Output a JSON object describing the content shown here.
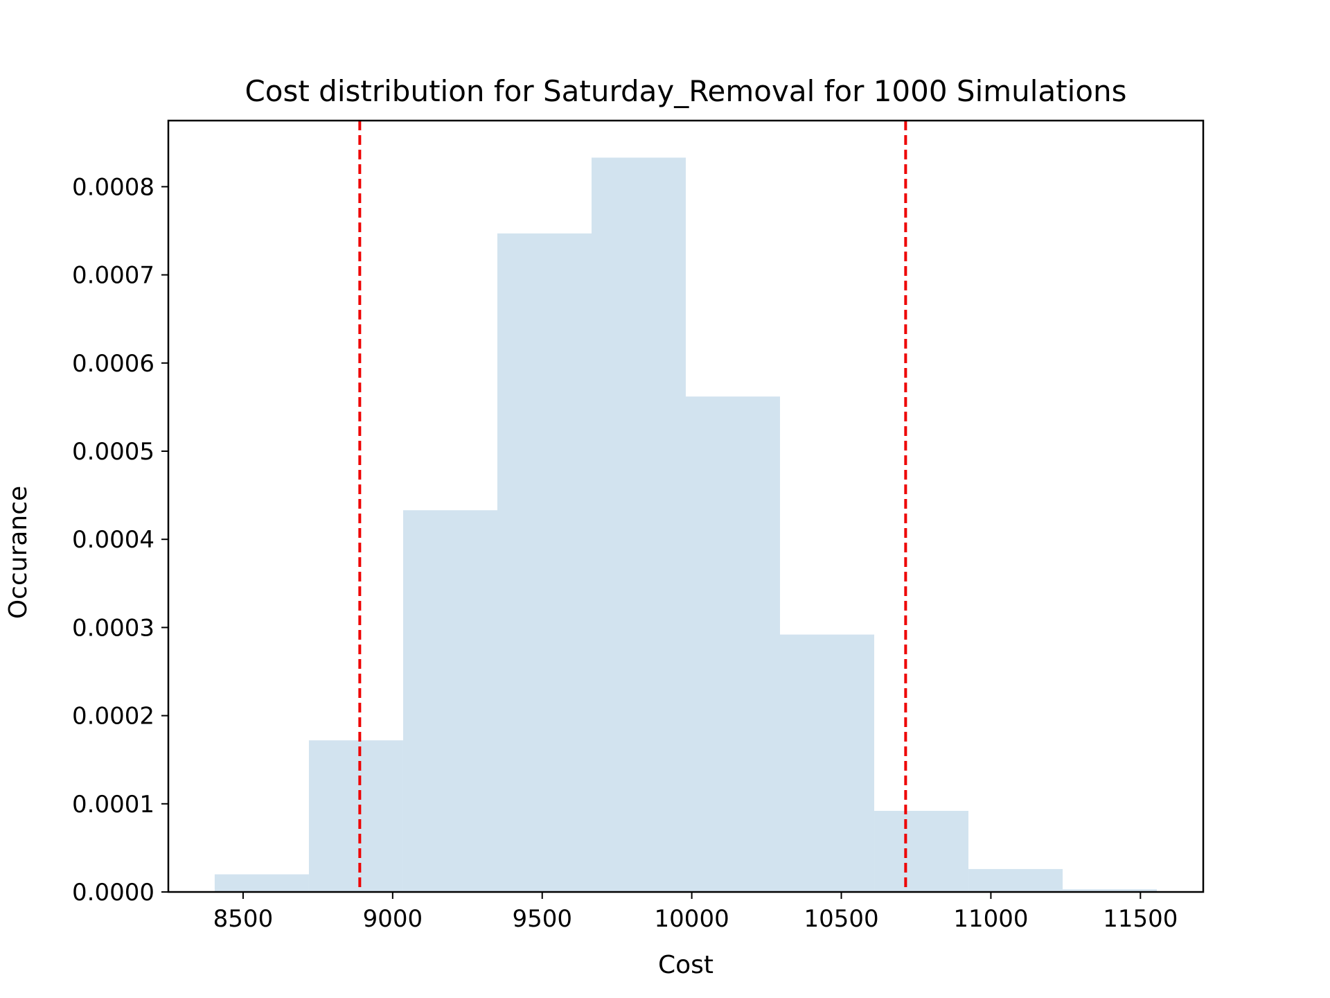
{
  "chart_data": {
    "type": "bar",
    "title": "Cost distribution for Saturday_Removal for 1000 Simulations",
    "xlabel": "Cost",
    "ylabel": "Occurance",
    "xlim": [
      8250,
      11710
    ],
    "ylim": [
      0,
      0.000875
    ],
    "x_ticks": [
      8500,
      9000,
      9500,
      10000,
      10500,
      11000,
      11500
    ],
    "x_tick_labels": [
      "8500",
      "9000",
      "9500",
      "10000",
      "10500",
      "11000",
      "11500"
    ],
    "y_ticks": [
      0,
      0.0001,
      0.0002,
      0.0003,
      0.0004,
      0.0005,
      0.0006,
      0.0007,
      0.0008
    ],
    "y_tick_labels": [
      "0.0000",
      "0.0001",
      "0.0002",
      "0.0003",
      "0.0004",
      "0.0005",
      "0.0006",
      "0.0007",
      "0.0008"
    ],
    "bin_edges": [
      8405,
      8720,
      9035,
      9350,
      9665,
      9980,
      10295,
      10610,
      10925,
      11240,
      11555
    ],
    "values": [
      2e-05,
      0.000172,
      0.000433,
      0.000747,
      0.000833,
      0.000562,
      0.000292,
      9.2e-05,
      2.6e-05,
      3e-06
    ],
    "vlines": [
      8890,
      10715
    ],
    "grid": false,
    "colors": {
      "bars": "#d2e3ef",
      "vlines": "#ee0000",
      "axes": "#000000"
    }
  }
}
